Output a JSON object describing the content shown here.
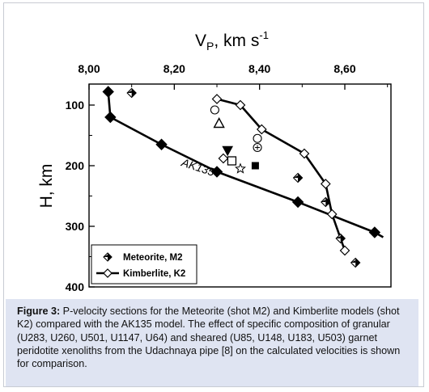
{
  "figure": {
    "label": "Figure 3:",
    "caption": " P-velocity sections for the Meteorite (shot M2) and Kimberlite models (shot K2) compared with the AK135 model. The effect of specific composition of granular (U283, U260, U501, U1147, U64) and sheared (U85, U148, U183, U503) garnet peridotite xenoliths from the Udachnaya pipe [8] on the calculated velocities is shown for comparison."
  },
  "chart_data": {
    "type": "line",
    "title": "V_P, km s^-1",
    "x_title_main": "V",
    "x_title_sub": "P",
    "x_title_rest": ", km s",
    "x_title_sup": "-1",
    "ylabel": "H, km",
    "xlim": [
      8.0,
      8.69
    ],
    "ylim": [
      400,
      65
    ],
    "x_axis_position": "top",
    "y_inverted": true,
    "grid": false,
    "legend_position": "bottom-left",
    "x_ticks": [
      8.0,
      8.2,
      8.4,
      8.6
    ],
    "x_tick_labels": [
      "8,00",
      "8,20",
      "8,40",
      "8,60"
    ],
    "y_ticks": [
      100,
      200,
      300,
      400
    ],
    "y_tick_labels": [
      "100",
      "200",
      "300",
      "400"
    ],
    "series": [
      {
        "name": "Meteorite, M2",
        "marker": "half-filled-diamond",
        "line": false,
        "points": [
          [
            8.045,
            78
          ],
          [
            8.1,
            80
          ],
          [
            8.49,
            220
          ],
          [
            8.555,
            260
          ],
          [
            8.59,
            320
          ],
          [
            8.625,
            360
          ]
        ]
      },
      {
        "name": "Kimberlite, K2",
        "marker": "open-diamond",
        "line": true,
        "points": [
          [
            8.3,
            90
          ],
          [
            8.355,
            100
          ],
          [
            8.405,
            140
          ],
          [
            8.505,
            180
          ],
          [
            8.555,
            230
          ],
          [
            8.57,
            280
          ],
          [
            8.6,
            340
          ]
        ]
      },
      {
        "name": "AK135",
        "marker": "filled-diamond",
        "line": true,
        "points": [
          [
            8.045,
            78
          ],
          [
            8.05,
            120
          ],
          [
            8.17,
            165
          ],
          [
            8.3,
            210
          ],
          [
            8.49,
            260
          ],
          [
            8.67,
            310
          ]
        ],
        "line_extend_to": [
          8.69,
          318
        ]
      }
    ],
    "xenolith_points": [
      {
        "symbol": "open-circle",
        "x": 8.295,
        "y": 108
      },
      {
        "symbol": "open-triangle",
        "x": 8.305,
        "y": 130
      },
      {
        "symbol": "filled-triangle-down",
        "x": 8.325,
        "y": 175
      },
      {
        "symbol": "open-square",
        "x": 8.335,
        "y": 192
      },
      {
        "symbol": "open-diamond",
        "x": 8.315,
        "y": 188
      },
      {
        "symbol": "filled-square",
        "x": 8.39,
        "y": 200
      },
      {
        "symbol": "open-star",
        "x": 8.355,
        "y": 205
      },
      {
        "symbol": "open-circle",
        "x": 8.395,
        "y": 155
      },
      {
        "symbol": "circle-plus",
        "x": 8.395,
        "y": 170
      }
    ],
    "annotations": [
      {
        "text": "AK135",
        "x": 8.215,
        "y": 200
      }
    ]
  }
}
